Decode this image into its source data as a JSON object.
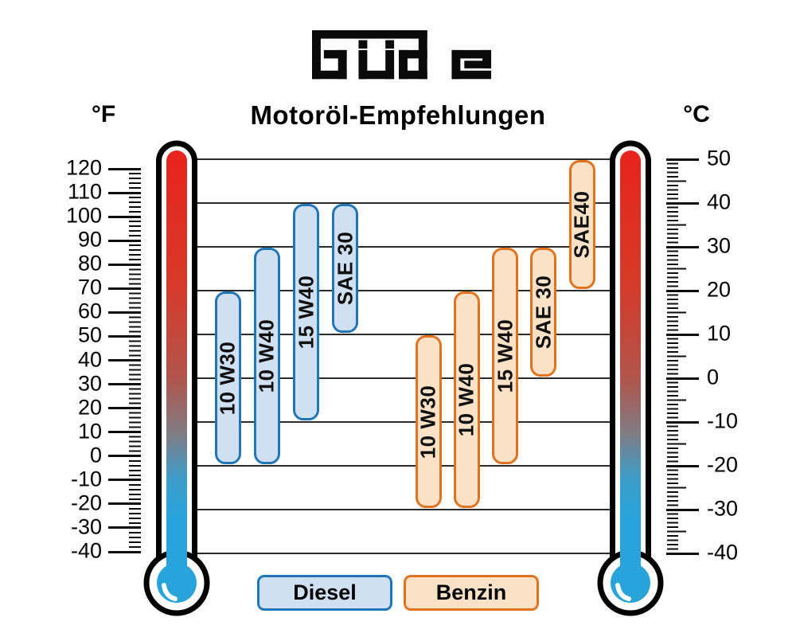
{
  "logo": {
    "brand": "Güde"
  },
  "title": "Motoröl-Empfehlungen",
  "axes": {
    "fahrenheit": {
      "unit": "°F",
      "labels": [
        120,
        110,
        100,
        90,
        80,
        70,
        60,
        50,
        40,
        30,
        20,
        10,
        0,
        -10,
        -20,
        -30,
        -40
      ]
    },
    "celsius": {
      "unit": "°C",
      "labels": [
        50,
        40,
        30,
        20,
        10,
        0,
        -10,
        -20,
        -30,
        -40
      ]
    }
  },
  "legend": [
    {
      "label": "Diesel",
      "series": "diesel"
    },
    {
      "label": "Benzin",
      "series": "benzin"
    }
  ],
  "colors": {
    "diesel_fill": "#cfe0f3",
    "diesel_border": "#2076b6",
    "benzin_fill": "#fbe2c7",
    "benzin_border": "#e2731e",
    "thermometer_red": "#e8231d",
    "thermometer_blue": "#29a4da",
    "gridline": "#2b2b2b",
    "text": "#000000"
  },
  "chart_data": {
    "type": "bar",
    "subtype": "vertical-temperature-range-bars",
    "title": "Motoröl-Empfehlungen",
    "unit_left": "°F",
    "unit_right": "°C",
    "ylim_c": [
      -40,
      50
    ],
    "ylim_f": [
      -40,
      120
    ],
    "grid": true,
    "gridline_step_c": 10,
    "series": [
      {
        "name": "Diesel",
        "bars": [
          {
            "label": "10 W30",
            "min_c": -20,
            "max_c": 20
          },
          {
            "label": "10 W40",
            "min_c": -20,
            "max_c": 30
          },
          {
            "label": "15 W40",
            "min_c": -10,
            "max_c": 40
          },
          {
            "label": "SAE 30",
            "min_c": 10,
            "max_c": 40
          }
        ]
      },
      {
        "name": "Benzin",
        "bars": [
          {
            "label": "10 W30",
            "min_c": -30,
            "max_c": 10
          },
          {
            "label": "10 W40",
            "min_c": -30,
            "max_c": 20
          },
          {
            "label": "15 W40",
            "min_c": -20,
            "max_c": 30
          },
          {
            "label": "SAE 30",
            "min_c": 0,
            "max_c": 30
          },
          {
            "label": "SAE40",
            "min_c": 20,
            "max_c": 50
          }
        ]
      }
    ]
  }
}
